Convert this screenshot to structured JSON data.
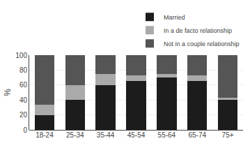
{
  "chart_data": {
    "type": "bar",
    "stacked": true,
    "categories": [
      "18-24",
      "25-34",
      "35-44",
      "45-54",
      "55-64",
      "65-74",
      "75+"
    ],
    "series": [
      {
        "name": "Married",
        "color": "#1c1c1c",
        "values": [
          20,
          40,
          60,
          65,
          70,
          65,
          40
        ]
      },
      {
        "name": "In a de facto relationship",
        "color": "#aaaaaa",
        "values": [
          14,
          20,
          15,
          8,
          5,
          8,
          3
        ]
      },
      {
        "name": "Not in a couple relationship",
        "color": "#555555",
        "values": [
          66,
          40,
          25,
          27,
          25,
          27,
          57
        ]
      }
    ],
    "ylabel": "%",
    "ylim": [
      0,
      100
    ],
    "yticks": [
      0,
      20,
      40,
      60,
      80,
      100
    ],
    "grid": true,
    "legend": "upper right"
  }
}
